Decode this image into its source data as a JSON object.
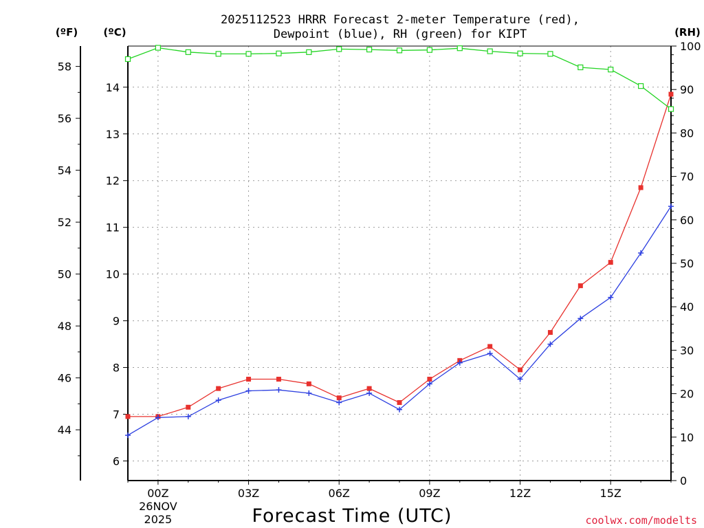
{
  "chart_data": {
    "type": "line",
    "title": [
      "2025112523 HRRR Forecast 2-meter Temperature (red),",
      "Dewpoint (blue), RH (green) for KIPT"
    ],
    "xlabel": "Forecast Time (UTC)",
    "x_hours": [
      -1,
      0,
      1,
      2,
      3,
      4,
      5,
      6,
      7,
      8,
      9,
      10,
      11,
      12,
      13,
      14,
      15,
      16,
      17
    ],
    "xlim": [
      -1,
      17
    ],
    "x_ticks": [
      {
        "hour": 0,
        "label": "00Z",
        "sub1": "26NOV",
        "sub2": "2025"
      },
      {
        "hour": 3,
        "label": "03Z"
      },
      {
        "hour": 6,
        "label": "06Z"
      },
      {
        "hour": 9,
        "label": "09Z"
      },
      {
        "hour": 12,
        "label": "12Z"
      },
      {
        "hour": 15,
        "label": "15Z"
      }
    ],
    "axes": {
      "celsius": {
        "unit_label": "(ºC)",
        "ylim": [
          5.58,
          14.88
        ],
        "ticks": [
          6,
          7,
          8,
          9,
          10,
          11,
          12,
          13,
          14
        ]
      },
      "fahrenheit": {
        "unit_label": "(ºF)",
        "ticks": [
          44,
          46,
          48,
          50,
          52,
          54,
          56,
          58
        ]
      },
      "rh": {
        "unit_label": "(RH)",
        "ylim": [
          0,
          100
        ],
        "ticks": [
          0,
          10,
          20,
          30,
          40,
          50,
          60,
          70,
          80,
          90,
          100
        ]
      }
    },
    "series": [
      {
        "name": "Temperature",
        "unit": "C",
        "color": "#e8322e",
        "marker": "filled-square",
        "values": [
          6.95,
          6.95,
          7.15,
          7.55,
          7.75,
          7.75,
          7.65,
          7.35,
          7.55,
          7.25,
          7.75,
          8.15,
          8.45,
          7.95,
          8.75,
          9.75,
          10.25,
          11.85,
          13.85
        ]
      },
      {
        "name": "Dewpoint",
        "unit": "C",
        "color": "#2c3fe0",
        "marker": "plus",
        "values": [
          6.55,
          6.93,
          6.95,
          7.3,
          7.5,
          7.52,
          7.45,
          7.25,
          7.45,
          7.1,
          7.65,
          8.1,
          8.3,
          7.75,
          8.5,
          9.05,
          9.5,
          10.45,
          11.45
        ]
      },
      {
        "name": "RH",
        "unit": "%",
        "color": "#22d422",
        "marker": "open-square",
        "values": [
          97,
          99.6,
          98.6,
          98.2,
          98.2,
          98.3,
          98.6,
          99.3,
          99.2,
          99,
          99.1,
          99.5,
          98.8,
          98.3,
          98.2,
          95.1,
          94.6,
          90.8,
          85.5
        ]
      }
    ]
  },
  "credit": "coolwx.com/modelts"
}
